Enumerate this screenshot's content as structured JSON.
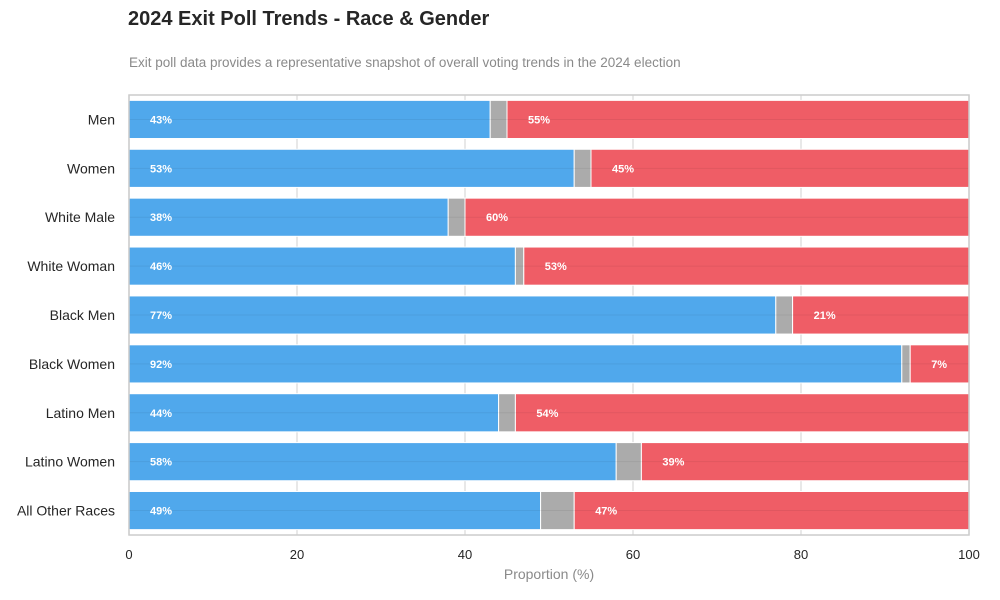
{
  "title": "2024 Exit Poll Trends - Race & Gender",
  "subtitle": "Exit poll data provides a representative snapshot of overall voting trends in the 2024 election",
  "colors": {
    "dem": "#4DA6EC",
    "other": "#A9A9A9",
    "rep": "#EF5A63",
    "grid": "#d8d8d8",
    "frame": "#cccccc"
  },
  "chart_data": {
    "type": "bar",
    "orientation": "horizontal",
    "stacked": true,
    "categories": [
      "Men",
      "Women",
      "White Male",
      "White Woman",
      "Black Men",
      "Black Women",
      "Latino Men",
      "Latino Women",
      "All Other Races"
    ],
    "series": [
      {
        "values": [
          43,
          53,
          38,
          46,
          77,
          92,
          44,
          58,
          49
        ],
        "labels": [
          "43%",
          "53%",
          "38%",
          "46%",
          "77%",
          "92%",
          "44%",
          "58%",
          "49%"
        ],
        "color": "#4DA6EC"
      },
      {
        "values": [
          2,
          2,
          2,
          1,
          2,
          1,
          2,
          3,
          4
        ],
        "color": "#A9A9A9"
      },
      {
        "values": [
          55,
          45,
          60,
          53,
          21,
          7,
          54,
          39,
          47
        ],
        "labels": [
          "55%",
          "45%",
          "60%",
          "53%",
          "21%",
          "7%",
          "54%",
          "39%",
          "47%"
        ],
        "color": "#EF5A63"
      }
    ],
    "xlabel": "Proportion (%)",
    "xlim": [
      0,
      100
    ],
    "xticks": [
      "0",
      "20",
      "40",
      "60",
      "80",
      "100"
    ],
    "grid": true
  }
}
